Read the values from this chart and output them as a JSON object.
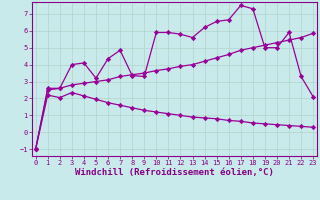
{
  "background_color": "#c8eaea",
  "grid_color": "#b0d4cc",
  "line_color": "#990099",
  "xlabel": "Windchill (Refroidissement éolien,°C)",
  "xlabel_fontsize": 6.5,
  "yticks": [
    -1,
    0,
    1,
    2,
    3,
    4,
    5,
    6,
    7
  ],
  "xticks": [
    0,
    1,
    2,
    3,
    4,
    5,
    6,
    7,
    8,
    9,
    10,
    11,
    12,
    13,
    14,
    15,
    16,
    17,
    18,
    19,
    20,
    21,
    22,
    23
  ],
  "xlim": [
    -0.3,
    23.3
  ],
  "ylim": [
    -1.4,
    7.7
  ],
  "line1_x": [
    0,
    1,
    2,
    3,
    4,
    5,
    6,
    7,
    8,
    9,
    10,
    11,
    12,
    13,
    14,
    15,
    16,
    17,
    18,
    19,
    20,
    21,
    22,
    23
  ],
  "line1_y": [
    -1.0,
    2.6,
    2.6,
    4.0,
    4.1,
    3.2,
    4.35,
    4.85,
    3.35,
    3.3,
    5.9,
    5.9,
    5.8,
    5.6,
    6.2,
    6.55,
    6.65,
    7.5,
    7.3,
    5.0,
    5.0,
    5.9,
    3.3,
    2.1
  ],
  "line2_x": [
    0,
    1,
    2,
    3,
    4,
    5,
    6,
    7,
    8,
    9,
    10,
    11,
    12,
    13,
    14,
    15,
    16,
    17,
    18,
    19,
    20,
    21,
    22,
    23
  ],
  "line2_y": [
    -1.0,
    2.5,
    2.6,
    2.8,
    2.9,
    3.0,
    3.1,
    3.3,
    3.4,
    3.5,
    3.65,
    3.75,
    3.9,
    4.0,
    4.2,
    4.4,
    4.6,
    4.85,
    5.0,
    5.15,
    5.3,
    5.45,
    5.6,
    5.85
  ],
  "line3_x": [
    0,
    1,
    2,
    3,
    4,
    5,
    6,
    7,
    8,
    9,
    10,
    11,
    12,
    13,
    14,
    15,
    16,
    17,
    18,
    19,
    20,
    21,
    22,
    23
  ],
  "line3_y": [
    -1.0,
    2.2,
    2.05,
    2.35,
    2.15,
    1.95,
    1.75,
    1.6,
    1.45,
    1.3,
    1.2,
    1.1,
    1.0,
    0.9,
    0.85,
    0.8,
    0.7,
    0.65,
    0.55,
    0.5,
    0.45,
    0.4,
    0.35,
    0.3
  ],
  "marker": "D",
  "marker_size": 2.2,
  "linewidth": 0.9,
  "tick_fontsize": 5,
  "tick_color": "#880088",
  "spine_color": "#880088"
}
